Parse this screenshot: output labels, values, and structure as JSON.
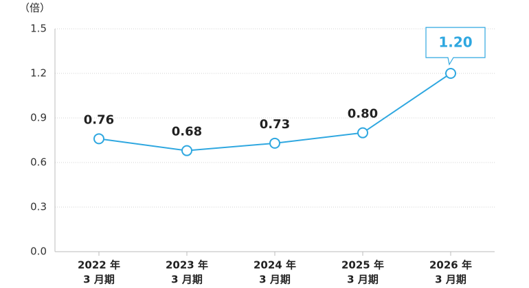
{
  "chart_data": {
    "type": "line",
    "y_axis_label": "（倍）",
    "categories": [
      [
        "2022 年",
        "3 月期"
      ],
      [
        "2023 年",
        "3 月期"
      ],
      [
        "2024 年",
        "3 月期"
      ],
      [
        "2025 年",
        "3 月期"
      ],
      [
        "2026 年",
        "3 月期"
      ]
    ],
    "series": [
      {
        "name": null,
        "color": "#2ea7e0",
        "values": [
          0.76,
          0.68,
          0.73,
          0.8,
          1.2
        ],
        "value_labels": [
          "0.76",
          "0.68",
          "0.73",
          "0.80",
          "1.20"
        ]
      }
    ],
    "ylim": [
      0,
      1.5
    ],
    "yticks": [
      {
        "value": 0,
        "label": "0.0"
      },
      0.3,
      0.6,
      0.9,
      1.2,
      1.5
    ],
    "grid": true
  }
}
